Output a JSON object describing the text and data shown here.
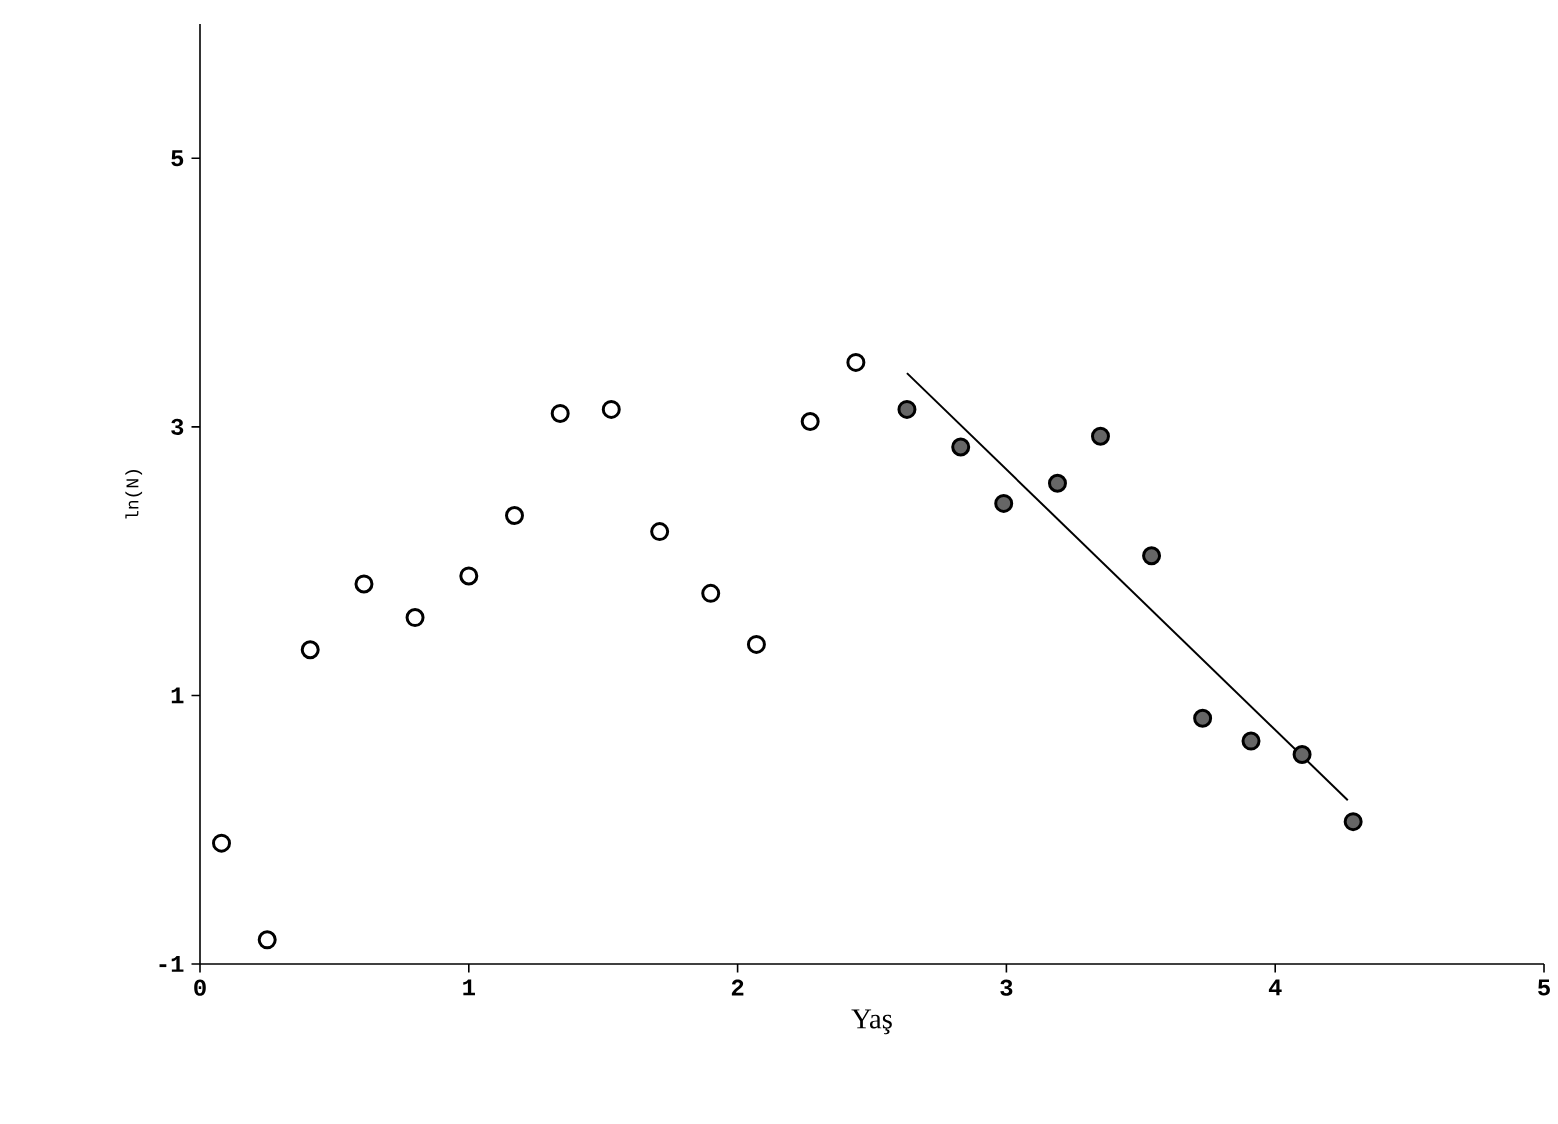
{
  "chart_data": {
    "type": "scatter",
    "xlabel": "Yaş",
    "ylabel": "ln(N)",
    "xlim": [
      0,
      5
    ],
    "ylim": [
      -1,
      6
    ],
    "xticks": [
      0,
      1,
      2,
      3,
      4,
      5
    ],
    "yticks": [
      -1,
      1,
      3,
      5
    ],
    "grid": false,
    "series": [
      {
        "marker": "circle",
        "color": "#000000",
        "x": [
          0.08,
          0.25,
          0.41,
          0.61,
          0.8,
          1.0,
          1.17,
          1.34,
          1.53,
          1.71,
          1.9,
          2.07,
          2.27,
          2.44
        ],
        "values": [
          -0.1,
          -0.82,
          1.34,
          1.83,
          1.58,
          1.89,
          2.34,
          3.1,
          3.13,
          2.22,
          1.76,
          1.38,
          3.04,
          3.48
        ]
      },
      {
        "marker": "circle",
        "color": "#000000",
        "x": [
          2.63,
          2.83,
          2.99,
          3.19,
          3.35,
          3.54,
          3.73,
          3.91,
          4.1,
          4.29
        ],
        "values": [
          3.13,
          2.85,
          2.43,
          2.58,
          2.93,
          2.04,
          0.83,
          0.66,
          0.56,
          0.06
        ]
      },
      {
        "type": "line",
        "marker": "none",
        "color": "#000000",
        "x": [
          2.63,
          4.27
        ],
        "values": [
          3.4,
          0.22
        ]
      }
    ]
  }
}
